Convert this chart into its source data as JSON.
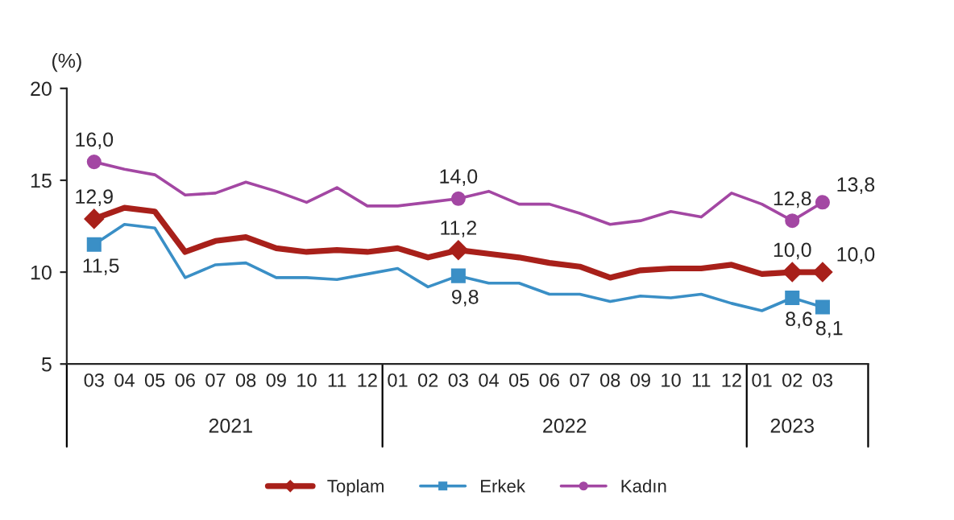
{
  "chart_data": {
    "type": "line",
    "ylabel": "(%)",
    "categories": [
      "03",
      "04",
      "05",
      "06",
      "07",
      "08",
      "09",
      "10",
      "11",
      "12",
      "01",
      "02",
      "03",
      "04",
      "05",
      "06",
      "07",
      "08",
      "09",
      "10",
      "11",
      "12",
      "01",
      "02",
      "03"
    ],
    "annotations": [
      "2021",
      "2022",
      "2023"
    ],
    "ylim": [
      5,
      20
    ],
    "yticks": [
      5,
      10,
      15,
      20
    ],
    "grid": false,
    "legend": "bottom",
    "series": [
      {
        "name": "Toplam",
        "color": "#a8201a",
        "values": [
          12.9,
          13.5,
          13.3,
          11.1,
          11.7,
          11.9,
          11.3,
          11.1,
          11.2,
          11.1,
          11.3,
          10.8,
          11.2,
          11.0,
          10.8,
          10.5,
          10.3,
          9.7,
          10.1,
          10.2,
          10.2,
          10.4,
          9.9,
          10.0,
          10.0
        ],
        "value_labels": [
          "12,9",
          null,
          null,
          null,
          null,
          null,
          null,
          null,
          null,
          null,
          null,
          null,
          "11,2",
          null,
          null,
          null,
          null,
          null,
          null,
          null,
          null,
          null,
          null,
          "10,0",
          "10,0"
        ]
      },
      {
        "name": "Erkek",
        "color": "#3a8fc6",
        "values": [
          11.5,
          12.6,
          12.4,
          9.7,
          10.4,
          10.5,
          9.7,
          9.7,
          9.6,
          9.9,
          10.2,
          9.2,
          9.8,
          9.4,
          9.4,
          8.8,
          8.8,
          8.4,
          8.7,
          8.6,
          8.8,
          8.3,
          7.9,
          8.6,
          8.1
        ],
        "value_labels": [
          "11,5",
          null,
          null,
          null,
          null,
          null,
          null,
          null,
          null,
          null,
          null,
          null,
          "9,8",
          null,
          null,
          null,
          null,
          null,
          null,
          null,
          null,
          null,
          null,
          "8,6",
          "8,1"
        ]
      },
      {
        "name": "Kadın",
        "color": "#a347a3",
        "values": [
          16.0,
          15.6,
          15.3,
          14.2,
          14.3,
          14.9,
          14.4,
          13.8,
          14.6,
          13.6,
          13.6,
          13.8,
          14.0,
          14.4,
          13.7,
          13.7,
          13.2,
          12.6,
          12.8,
          13.3,
          13.0,
          14.3,
          13.7,
          12.8,
          13.8
        ],
        "value_labels": [
          "16,0",
          null,
          null,
          null,
          null,
          null,
          null,
          null,
          null,
          null,
          null,
          null,
          "14,0",
          null,
          null,
          null,
          null,
          null,
          null,
          null,
          null,
          null,
          null,
          "12,8",
          "13,8"
        ]
      }
    ]
  }
}
